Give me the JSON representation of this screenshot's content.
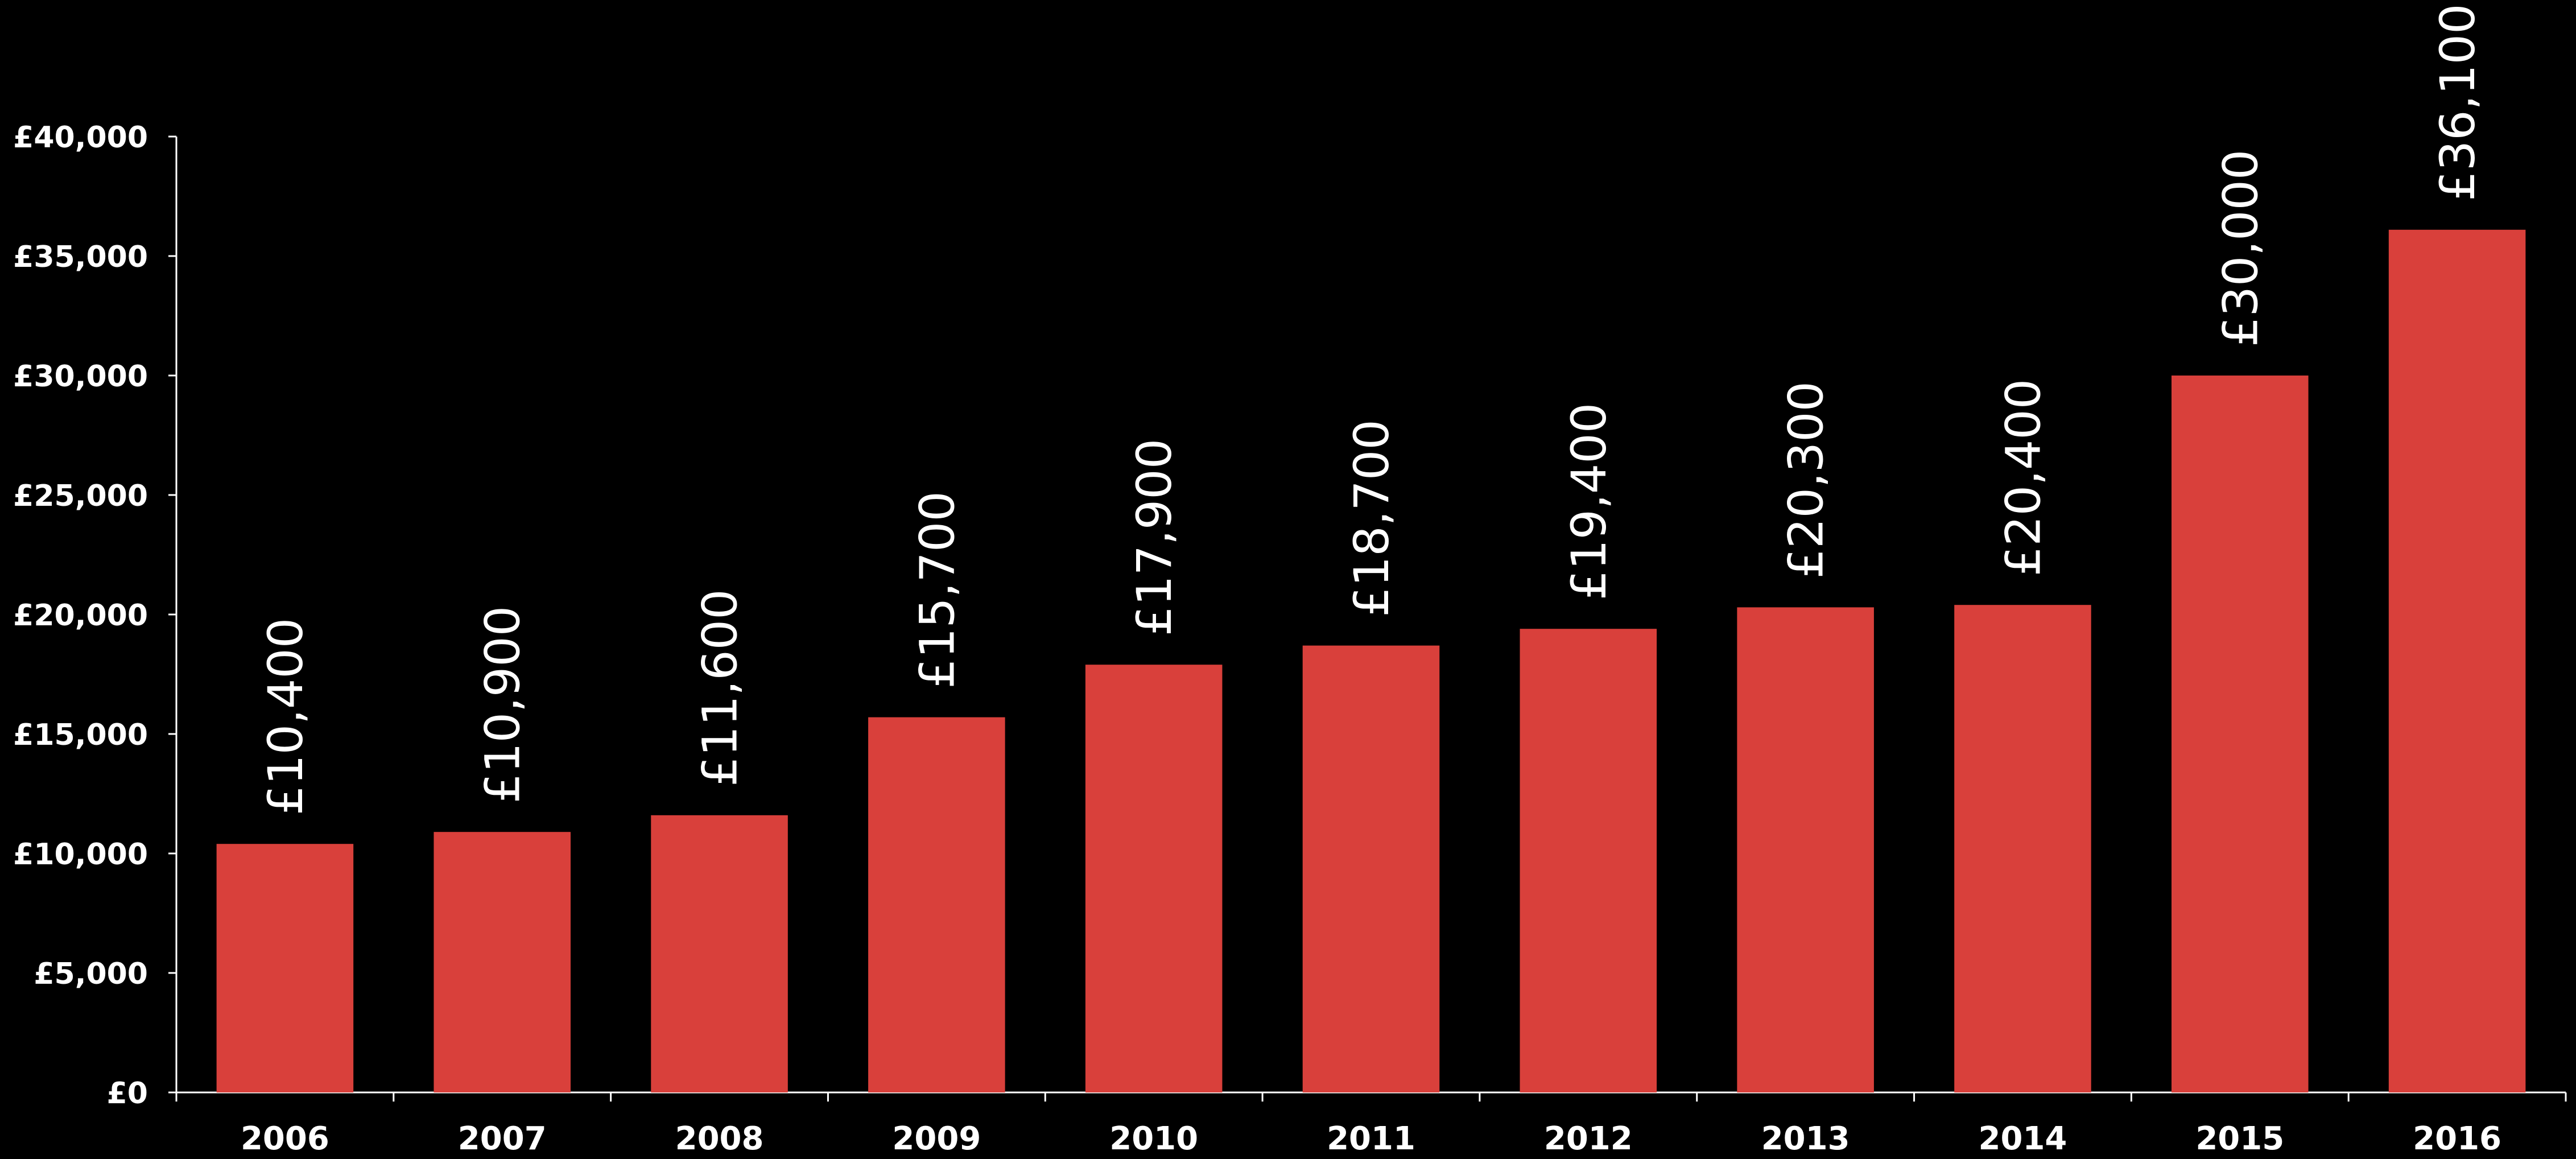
{
  "chart_data": {
    "type": "bar",
    "title": "",
    "xlabel": "",
    "ylabel": "",
    "categories": [
      "2006",
      "2007",
      "2008",
      "2009",
      "2010",
      "2011",
      "2012",
      "2013",
      "2014",
      "2015",
      "2016"
    ],
    "values": [
      10400,
      10900,
      11600,
      15700,
      17900,
      18700,
      19400,
      20300,
      20400,
      30000,
      36100
    ],
    "data_labels": [
      "£10,400",
      "£10,900",
      "£11,600",
      "£15,700",
      "£17,900",
      "£18,700",
      "£19,400",
      "£20,300",
      "£20,400",
      "£30,000",
      "£36,100"
    ],
    "ylim": [
      0,
      40000
    ],
    "y_ticks": [
      0,
      5000,
      10000,
      15000,
      20000,
      25000,
      30000,
      35000,
      40000
    ],
    "y_tick_labels": [
      "£0",
      "£5,000",
      "£10,000",
      "£15,000",
      "£20,000",
      "£25,000",
      "£30,000",
      "£35,000",
      "£40,000"
    ],
    "grid": false,
    "legend": "none",
    "data_label_orientation": "vertical",
    "colors": {
      "bar": "#d9403b",
      "background": "#000000",
      "axis": "#ffffff",
      "text": "#ffffff"
    }
  }
}
